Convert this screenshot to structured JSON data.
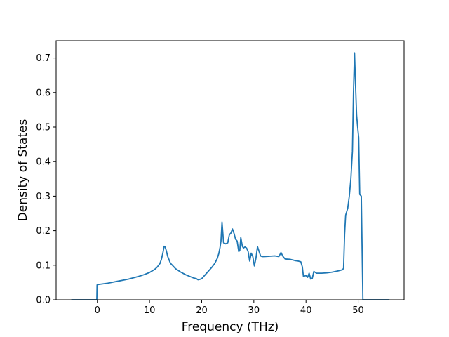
{
  "chart_data": {
    "type": "line",
    "title": "",
    "xlabel": "Frequency (THz)",
    "ylabel": "Density of States",
    "xlim": [
      -7.9,
      58.8
    ],
    "ylim": [
      0.0,
      0.75
    ],
    "xticks": [
      0,
      10,
      20,
      30,
      40,
      50
    ],
    "xtick_labels": [
      "0",
      "10",
      "20",
      "30",
      "40",
      "50"
    ],
    "yticks": [
      0.0,
      0.1,
      0.2,
      0.3,
      0.4,
      0.5,
      0.6,
      0.7
    ],
    "ytick_labels": [
      "0.0",
      "0.1",
      "0.2",
      "0.3",
      "0.4",
      "0.5",
      "0.6",
      "0.7"
    ],
    "grid": false,
    "legend": false,
    "series_color": "#1f77b4",
    "series": [
      {
        "x": [
          -5.0,
          -0.1,
          -0.05,
          0.1,
          0.5,
          1.0,
          2.0,
          3.0,
          4.0,
          5.0,
          6.0,
          7.0,
          8.0,
          9.0,
          10.0,
          11.0,
          11.5,
          12.0,
          12.3,
          12.6,
          12.8,
          13.0,
          13.2,
          13.5,
          14.0,
          15.0,
          16.0,
          17.0,
          18.0,
          18.5,
          19.0,
          19.3,
          19.6,
          20.0,
          21.0,
          22.0,
          22.5,
          23.0,
          23.3,
          23.5,
          23.7,
          23.9,
          24.2,
          24.6,
          25.0,
          25.3,
          25.6,
          25.9,
          26.2,
          26.5,
          26.8,
          27.1,
          27.3,
          27.5,
          27.8,
          28.0,
          28.3,
          28.6,
          28.9,
          29.2,
          29.5,
          29.8,
          30.1,
          30.4,
          30.7,
          31.0,
          31.3,
          31.6,
          32.0,
          33.0,
          34.0,
          34.8,
          35.2,
          35.6,
          36.0,
          37.0,
          37.5,
          38.0,
          38.5,
          39.0,
          39.3,
          39.5,
          40.0,
          40.3,
          40.6,
          40.9,
          41.2,
          41.5,
          42.0,
          43.0,
          44.0,
          45.0,
          46.0,
          47.0,
          47.2,
          47.4,
          47.6,
          48.0,
          48.3,
          48.6,
          48.9,
          49.1,
          49.3,
          49.5,
          49.7,
          49.9,
          50.1,
          50.3,
          50.6,
          50.9,
          51.0,
          51.1,
          52.0,
          56.0
        ],
        "y": [
          0.0,
          0.0,
          0.043,
          0.044,
          0.045,
          0.046,
          0.048,
          0.051,
          0.054,
          0.057,
          0.06,
          0.064,
          0.068,
          0.073,
          0.079,
          0.088,
          0.095,
          0.105,
          0.118,
          0.138,
          0.155,
          0.153,
          0.143,
          0.125,
          0.106,
          0.09,
          0.08,
          0.072,
          0.066,
          0.063,
          0.061,
          0.058,
          0.059,
          0.061,
          0.078,
          0.095,
          0.105,
          0.12,
          0.135,
          0.15,
          0.17,
          0.225,
          0.165,
          0.162,
          0.165,
          0.188,
          0.193,
          0.205,
          0.192,
          0.175,
          0.17,
          0.14,
          0.142,
          0.18,
          0.155,
          0.15,
          0.153,
          0.15,
          0.14,
          0.112,
          0.135,
          0.125,
          0.098,
          0.12,
          0.154,
          0.14,
          0.127,
          0.125,
          0.125,
          0.126,
          0.127,
          0.125,
          0.137,
          0.125,
          0.118,
          0.117,
          0.115,
          0.113,
          0.112,
          0.11,
          0.095,
          0.068,
          0.07,
          0.065,
          0.077,
          0.06,
          0.062,
          0.082,
          0.077,
          0.077,
          0.078,
          0.08,
          0.083,
          0.087,
          0.091,
          0.19,
          0.245,
          0.265,
          0.3,
          0.35,
          0.43,
          0.6,
          0.715,
          0.62,
          0.535,
          0.5,
          0.47,
          0.305,
          0.3,
          0.0,
          0.0,
          0.0,
          0.0,
          0.0
        ]
      }
    ]
  }
}
